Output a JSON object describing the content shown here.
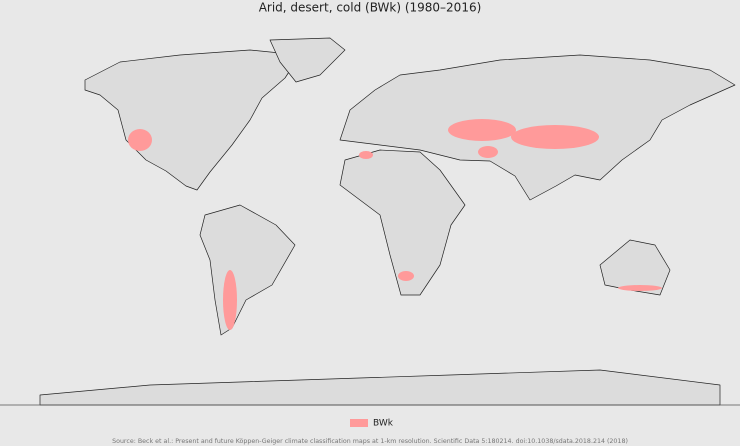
{
  "title": "Arid, desert, cold (BWk) (1980–2016)",
  "legend": {
    "label": "BWk"
  },
  "source": "Source: Beck et al.: Present and future Köppen-Geiger climate classification maps at 1-km resolution. Scientific Data 5:180214. doi:10.1038/sdata.2018.214 (2018)"
}
